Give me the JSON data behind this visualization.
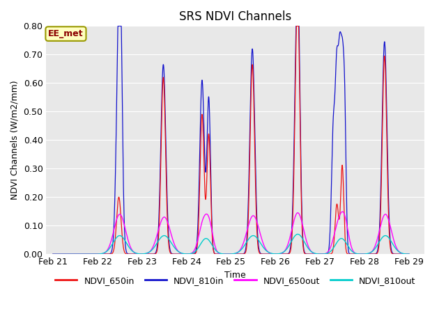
{
  "title": "SRS NDVI Channels",
  "xlabel": "Time",
  "ylabel": "NDVI Channels (W/m2/mm)",
  "ylim": [
    0.0,
    0.8
  ],
  "yticks": [
    0.0,
    0.1,
    0.2,
    0.3,
    0.4,
    0.5,
    0.6,
    0.7,
    0.8
  ],
  "xtick_labels": [
    "Feb 21",
    "Feb 22",
    "Feb 23",
    "Feb 24",
    "Feb 25",
    "Feb 26",
    "Feb 27",
    "Feb 28",
    "Feb 29"
  ],
  "annotation_text": "EE_met",
  "annotation_color": "#8B0000",
  "annotation_bg": "#FFFFC0",
  "annotation_border": "#999900",
  "colors": {
    "NDVI_650in": "#EE1111",
    "NDVI_810in": "#1111CC",
    "NDVI_650out": "#FF00FF",
    "NDVI_810out": "#00CCCC"
  },
  "background_color": "#E8E8E8",
  "fig_bg": "#FFFFFF",
  "n_days": 8,
  "pts_per_day": 300
}
